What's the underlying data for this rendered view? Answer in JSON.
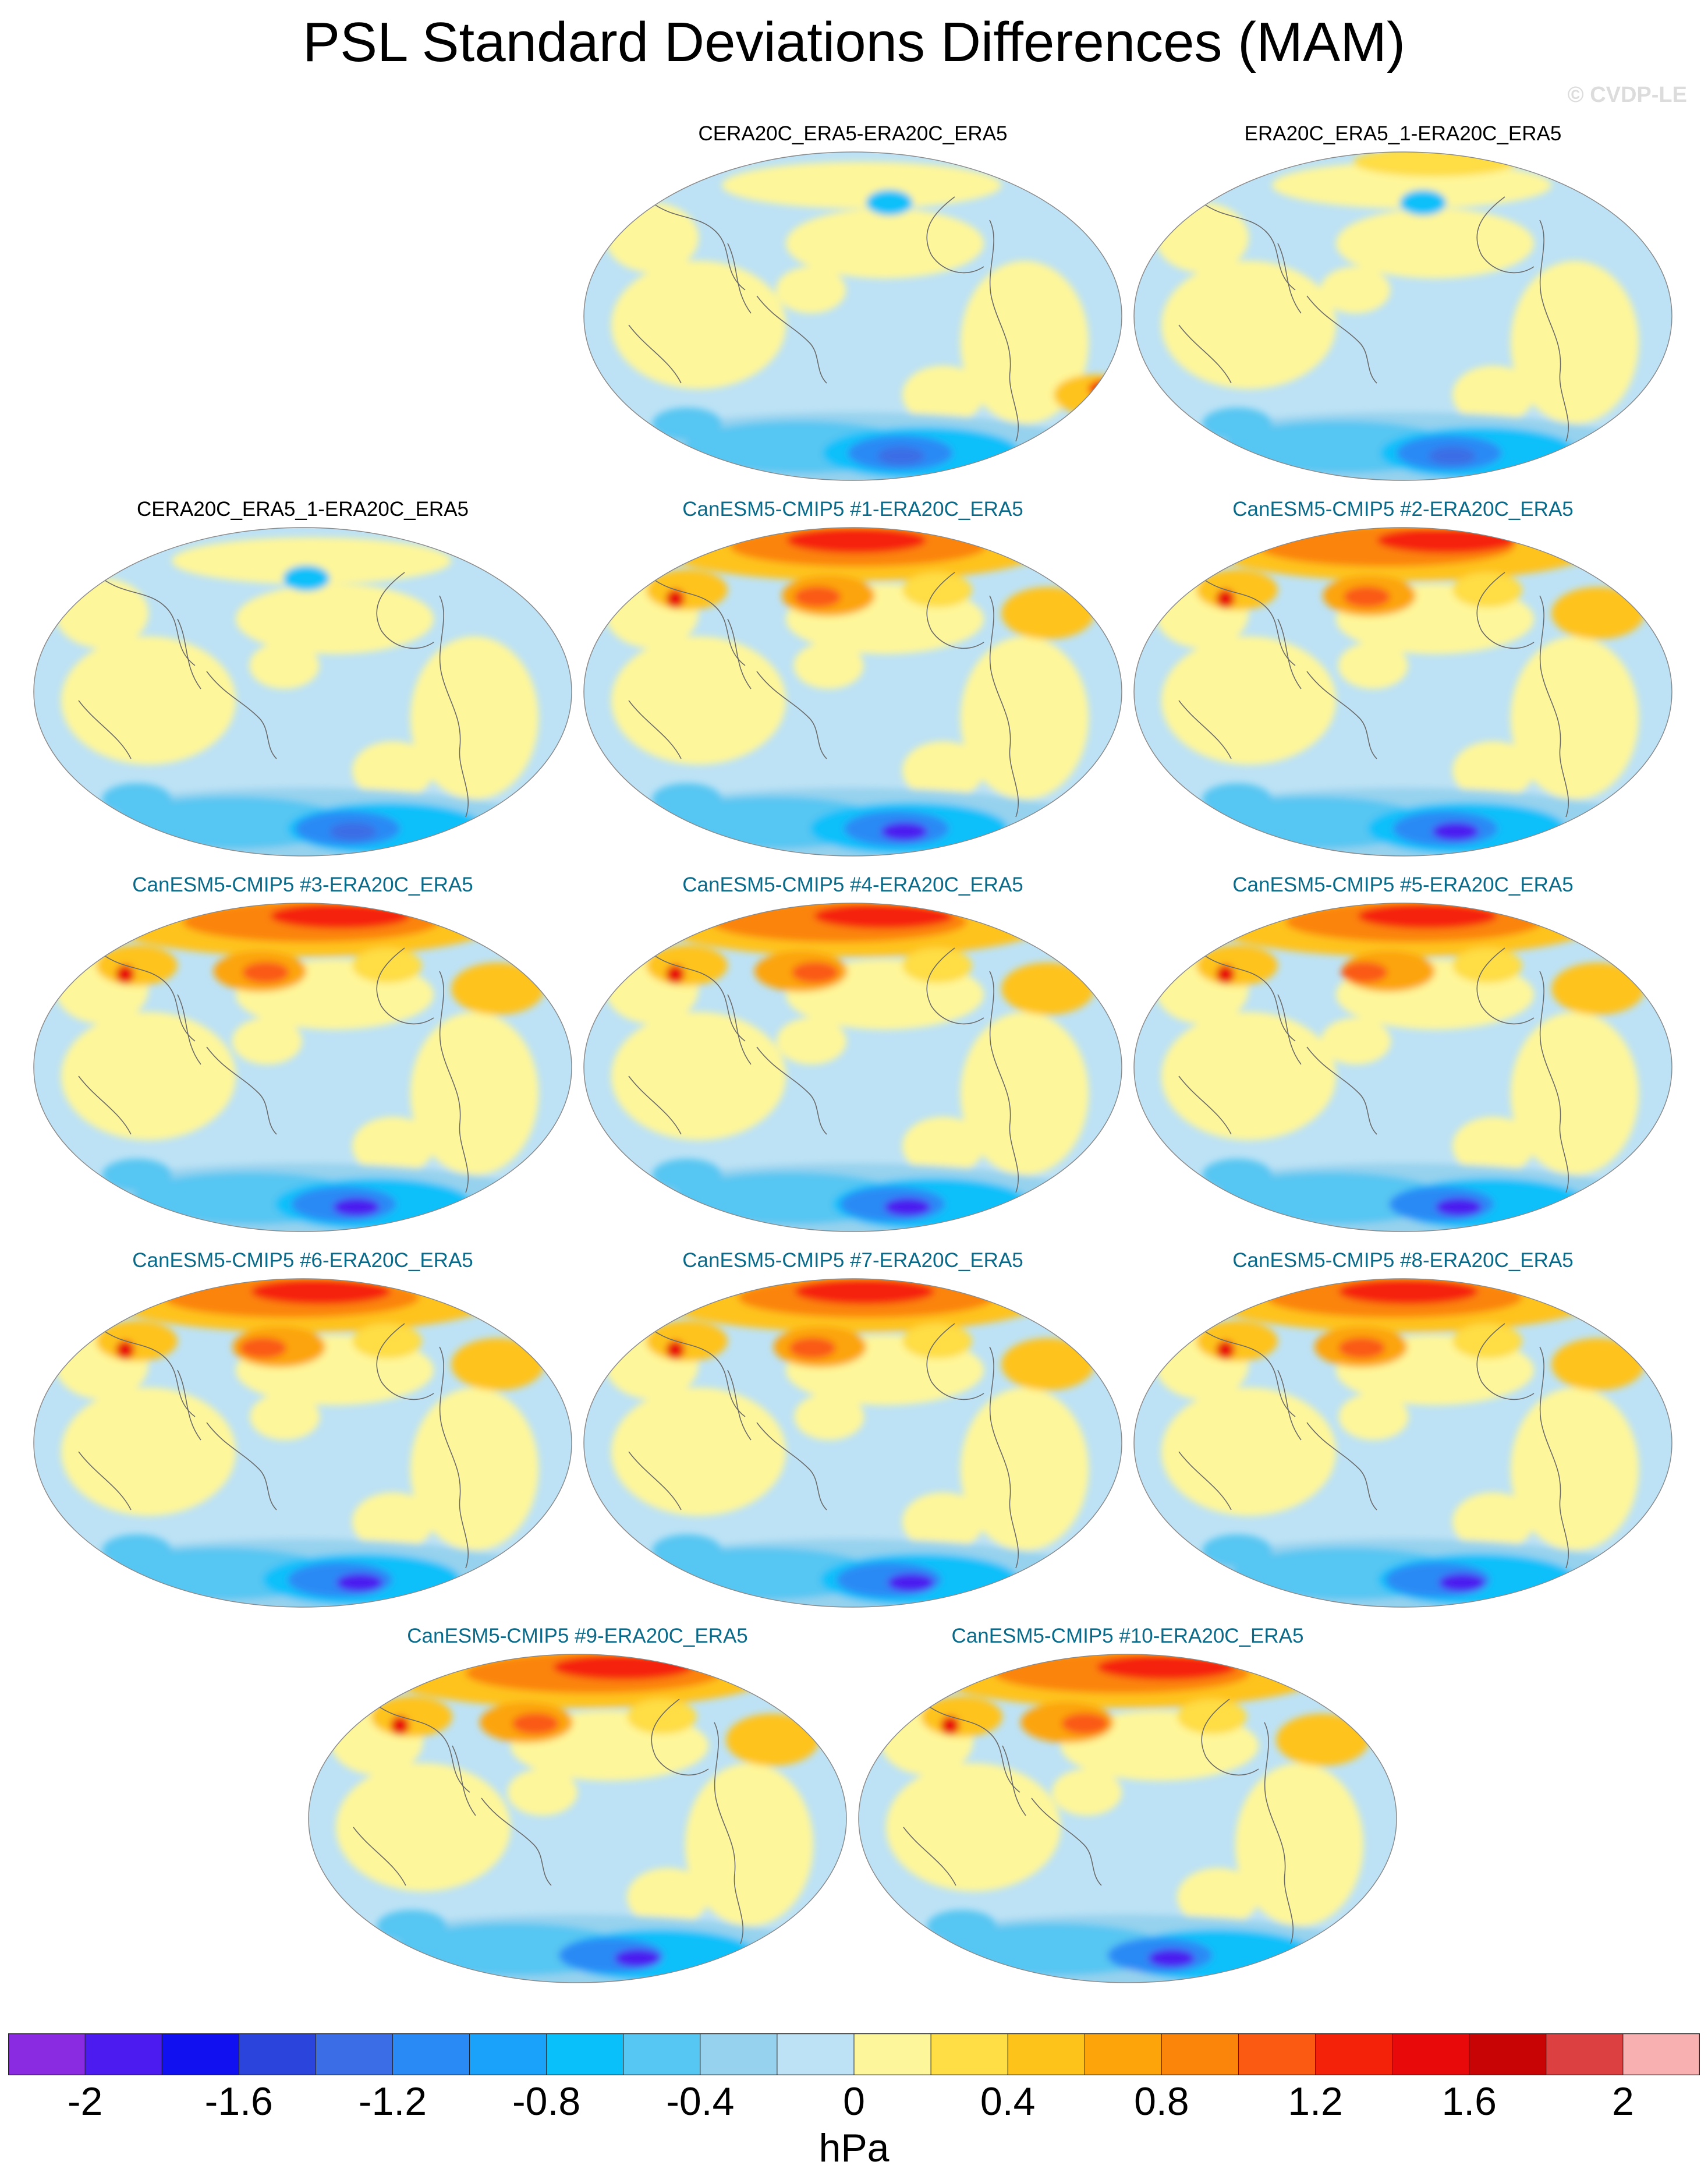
{
  "title": "PSL Standard Deviations Differences (MAM)",
  "credit": "© CVDP-LE",
  "colorbar": {
    "units": "hPa",
    "colors": [
      "#8a2be2",
      "#4b1bf0",
      "#1010f0",
      "#2b45dc",
      "#3b6ee6",
      "#2a8af5",
      "#1aa2fa",
      "#0ac0fa",
      "#56c6f2",
      "#96d2ee",
      "#bde2f5",
      "#fef69a",
      "#fedd45",
      "#fec31a",
      "#fca40a",
      "#fb840a",
      "#fa5a12",
      "#f5220a",
      "#e80a0a",
      "#c80404",
      "#dc4040",
      "#f9b0b0"
    ],
    "tick_values": [
      -2,
      -1.6,
      -1.2,
      -0.8,
      -0.4,
      0,
      0.4,
      0.8,
      1.2,
      1.6,
      2
    ],
    "tick_labels": [
      "-2",
      "-1.6",
      "-1.2",
      "-0.8",
      "-0.4",
      "0",
      "0.4",
      "0.8",
      "1.2",
      "1.6",
      "2"
    ]
  },
  "panels": [
    {
      "title": "CERA20C_ERA5-ERA20C_ERA5",
      "type": "obs"
    },
    {
      "title": "ERA20C_ERA5_1-ERA20C_ERA5",
      "type": "obs"
    },
    {
      "title": "CERA20C_ERA5_1-ERA20C_ERA5",
      "type": "obs"
    },
    {
      "title": "CanESM5-CMIP5 #1-ERA20C_ERA5",
      "type": "model"
    },
    {
      "title": "CanESM5-CMIP5 #2-ERA20C_ERA5",
      "type": "model"
    },
    {
      "title": "CanESM5-CMIP5 #3-ERA20C_ERA5",
      "type": "model"
    },
    {
      "title": "CanESM5-CMIP5 #4-ERA20C_ERA5",
      "type": "model"
    },
    {
      "title": "CanESM5-CMIP5 #5-ERA20C_ERA5",
      "type": "model"
    },
    {
      "title": "CanESM5-CMIP5 #6-ERA20C_ERA5",
      "type": "model"
    },
    {
      "title": "CanESM5-CMIP5 #7-ERA20C_ERA5",
      "type": "model"
    },
    {
      "title": "CanESM5-CMIP5 #8-ERA20C_ERA5",
      "type": "model"
    },
    {
      "title": "CanESM5-CMIP5 #9-ERA20C_ERA5",
      "type": "model"
    },
    {
      "title": "CanESM5-CMIP5 #10-ERA20C_ERA5",
      "type": "model"
    }
  ]
}
